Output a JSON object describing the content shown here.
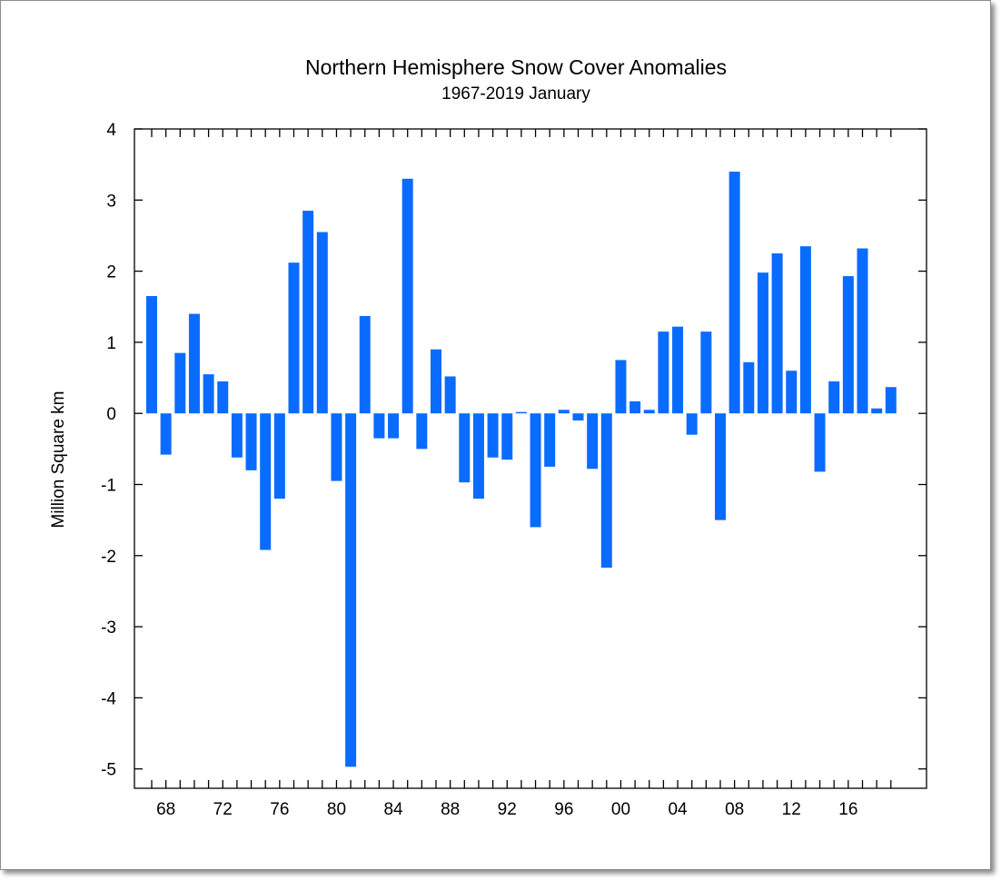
{
  "chart_data": {
    "type": "bar",
    "title": "Northern Hemisphere Snow Cover Anomalies",
    "subtitle": "1967-2019 January",
    "xlabel": "",
    "ylabel": "Million Square km",
    "ylim": [
      -5,
      4
    ],
    "yticks": [
      4,
      3,
      2,
      1,
      0,
      -1,
      -2,
      -3,
      -4,
      -5
    ],
    "xlim": [
      1966,
      2020
    ],
    "xtick_years": [
      1968,
      1972,
      1976,
      1980,
      1984,
      1988,
      1992,
      1996,
      2000,
      2004,
      2008,
      2012,
      2016
    ],
    "xtick_labels": [
      "68",
      "72",
      "76",
      "80",
      "84",
      "88",
      "92",
      "96",
      "00",
      "04",
      "08",
      "12",
      "16"
    ],
    "grid": false,
    "bar_color": "#0a6bff",
    "x": [
      1967,
      1968,
      1969,
      1970,
      1971,
      1972,
      1973,
      1974,
      1975,
      1976,
      1977,
      1978,
      1979,
      1980,
      1981,
      1982,
      1983,
      1984,
      1985,
      1986,
      1987,
      1988,
      1989,
      1990,
      1991,
      1992,
      1993,
      1994,
      1995,
      1996,
      1997,
      1998,
      1999,
      2000,
      2001,
      2002,
      2003,
      2004,
      2005,
      2006,
      2007,
      2008,
      2009,
      2010,
      2011,
      2012,
      2013,
      2014,
      2015,
      2016,
      2017,
      2018,
      2019
    ],
    "values": [
      1.65,
      -0.58,
      0.85,
      1.4,
      0.55,
      0.45,
      -0.62,
      -0.8,
      -1.92,
      -1.2,
      2.12,
      2.85,
      2.55,
      -0.95,
      -4.97,
      1.37,
      -0.35,
      -0.35,
      3.3,
      -0.5,
      0.9,
      0.52,
      -0.97,
      -1.2,
      -0.62,
      -0.65,
      0.02,
      -1.6,
      -0.75,
      0.05,
      -0.1,
      -0.78,
      -2.17,
      0.75,
      0.17,
      0.05,
      1.15,
      1.22,
      -0.3,
      1.15,
      -1.5,
      3.4,
      0.72,
      1.98,
      2.25,
      0.6,
      2.35,
      -0.82,
      0.45,
      1.93,
      2.32,
      0.07,
      0.37
    ]
  }
}
